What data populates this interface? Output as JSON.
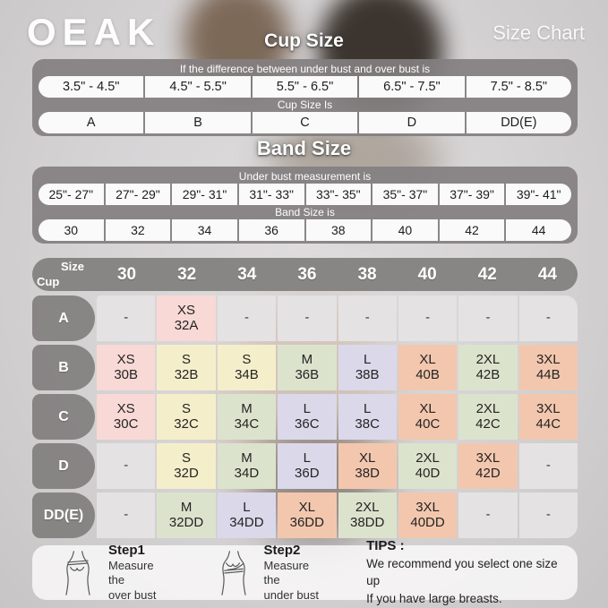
{
  "header": {
    "logo": "OEAK",
    "page_title": "Size Chart"
  },
  "cup_section": {
    "title": "Cup Size",
    "condition_label": "If the difference between under bust and over bust is",
    "ranges": [
      "3.5\" - 4.5\"",
      "4.5\" - 5.5\"",
      "5.5\" - 6.5\"",
      "6.5\" - 7.5\"",
      "7.5\" - 8.5\""
    ],
    "result_label": "Cup Size Is",
    "cups": [
      "A",
      "B",
      "C",
      "D",
      "DD(E)"
    ]
  },
  "band_section": {
    "title": "Band Size",
    "condition_label": "Under bust measurement is",
    "ranges": [
      "25\"- 27\"",
      "27\"- 29\"",
      "29\"- 31\"",
      "31\"- 33\"",
      "33\"- 35\"",
      "35\"- 37\"",
      "37\"- 39\"",
      "39\"- 41\""
    ],
    "result_label": "Band Size is",
    "bands": [
      "30",
      "32",
      "34",
      "36",
      "38",
      "40",
      "42",
      "44"
    ]
  },
  "matrix": {
    "corner_top": "Size",
    "corner_bottom": "Cup",
    "columns": [
      "30",
      "32",
      "34",
      "36",
      "38",
      "40",
      "42",
      "44"
    ],
    "rows": [
      {
        "label": "A",
        "cells": [
          {
            "t1": "-",
            "t2": "",
            "c": "gray"
          },
          {
            "t1": "XS",
            "t2": "32A",
            "c": "pink"
          },
          {
            "t1": "-",
            "t2": "",
            "c": "gray"
          },
          {
            "t1": "-",
            "t2": "",
            "c": "gray"
          },
          {
            "t1": "-",
            "t2": "",
            "c": "gray"
          },
          {
            "t1": "-",
            "t2": "",
            "c": "gray"
          },
          {
            "t1": "-",
            "t2": "",
            "c": "gray"
          },
          {
            "t1": "-",
            "t2": "",
            "c": "gray"
          }
        ]
      },
      {
        "label": "B",
        "cells": [
          {
            "t1": "XS",
            "t2": "30B",
            "c": "pink"
          },
          {
            "t1": "S",
            "t2": "32B",
            "c": "cream"
          },
          {
            "t1": "S",
            "t2": "34B",
            "c": "cream"
          },
          {
            "t1": "M",
            "t2": "36B",
            "c": "green"
          },
          {
            "t1": "L",
            "t2": "38B",
            "c": "lavender"
          },
          {
            "t1": "XL",
            "t2": "40B",
            "c": "salmon"
          },
          {
            "t1": "2XL",
            "t2": "42B",
            "c": "green"
          },
          {
            "t1": "3XL",
            "t2": "44B",
            "c": "salmon"
          }
        ]
      },
      {
        "label": "C",
        "cells": [
          {
            "t1": "XS",
            "t2": "30C",
            "c": "pink"
          },
          {
            "t1": "S",
            "t2": "32C",
            "c": "cream"
          },
          {
            "t1": "M",
            "t2": "34C",
            "c": "green"
          },
          {
            "t1": "L",
            "t2": "36C",
            "c": "lavender"
          },
          {
            "t1": "L",
            "t2": "38C",
            "c": "lavender"
          },
          {
            "t1": "XL",
            "t2": "40C",
            "c": "salmon"
          },
          {
            "t1": "2XL",
            "t2": "42C",
            "c": "green"
          },
          {
            "t1": "3XL",
            "t2": "44C",
            "c": "salmon"
          }
        ]
      },
      {
        "label": "D",
        "cells": [
          {
            "t1": "-",
            "t2": "",
            "c": "gray"
          },
          {
            "t1": "S",
            "t2": "32D",
            "c": "cream"
          },
          {
            "t1": "M",
            "t2": "34D",
            "c": "green"
          },
          {
            "t1": "L",
            "t2": "36D",
            "c": "lavender"
          },
          {
            "t1": "XL",
            "t2": "38D",
            "c": "salmon"
          },
          {
            "t1": "2XL",
            "t2": "40D",
            "c": "green"
          },
          {
            "t1": "3XL",
            "t2": "42D",
            "c": "salmon"
          },
          {
            "t1": "-",
            "t2": "",
            "c": "gray"
          }
        ]
      },
      {
        "label": "DD(E)",
        "cells": [
          {
            "t1": "-",
            "t2": "",
            "c": "gray"
          },
          {
            "t1": "M",
            "t2": "32DD",
            "c": "green"
          },
          {
            "t1": "L",
            "t2": "34DD",
            "c": "lavender"
          },
          {
            "t1": "XL",
            "t2": "36DD",
            "c": "salmon"
          },
          {
            "t1": "2XL",
            "t2": "38DD",
            "c": "green"
          },
          {
            "t1": "3XL",
            "t2": "40DD",
            "c": "salmon"
          },
          {
            "t1": "-",
            "t2": "",
            "c": "gray"
          },
          {
            "t1": "-",
            "t2": "",
            "c": "gray"
          }
        ]
      }
    ]
  },
  "footer": {
    "steps": [
      {
        "title": "Step1",
        "desc": "Measure the\nover bust"
      },
      {
        "title": "Step2",
        "desc": "Measure the\nunder bust"
      }
    ],
    "tips_title": "TIPS :",
    "tips_text": "We recommend you select one size up\nIf you have large breasts."
  },
  "colors": {
    "panel": "#837f80",
    "pill": "#fbfafa",
    "cell_gray": "#e4e2e3",
    "cell_pink": "#f8d9d6",
    "cell_cream": "#f5eecb",
    "cell_green": "#dce3cd",
    "cell_lavender": "#dbd8ea",
    "cell_salmon": "#f3c7ae",
    "title_text": "#ffffff"
  }
}
